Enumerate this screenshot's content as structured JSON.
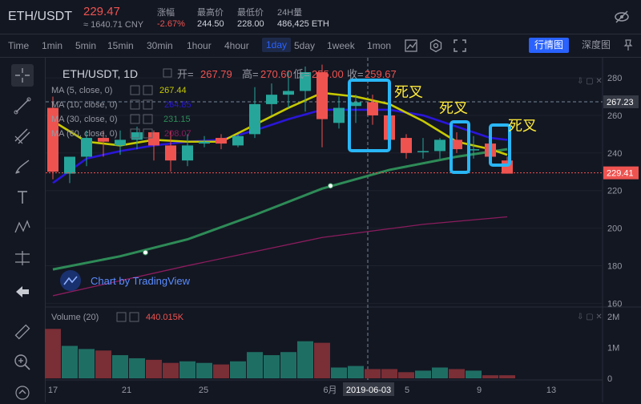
{
  "header": {
    "pair": "ETH/USDT",
    "price": "229.47",
    "price_cny": "≈ 1640.71 CNY",
    "change_label": "涨幅",
    "change_value": "-2.67%",
    "high_label": "最高价",
    "high_value": "244.50",
    "low_label": "最低价",
    "low_value": "228.00",
    "volume_label": "24H量",
    "volume_value": "486,425 ETH"
  },
  "timeframes": [
    "Time",
    "1min",
    "5min",
    "15min",
    "30min",
    "1hour",
    "4hour",
    "1day",
    "5day",
    "1week",
    "1mon"
  ],
  "active_timeframe": "1day",
  "view_buttons": {
    "primary": "行情图",
    "secondary": "深度图"
  },
  "legend": {
    "title": "ETH/USDT, 1D",
    "open_label": "开=",
    "open_value": "267.79",
    "high_label": "高=",
    "high_value": "270.60",
    "low_label": "低=",
    "low_value": "255.00",
    "close_label": "收=",
    "close_value": "259.67",
    "ma5": {
      "label": "MA (5, close, 0)",
      "value": "267.44",
      "color": "#c7c900"
    },
    "ma10": {
      "label": "MA (10, close, 0)",
      "value": "264.85",
      "color": "#2a16d9"
    },
    "ma30": {
      "label": "MA (30, close, 0)",
      "value": "231.15",
      "color": "#2e8b57"
    },
    "ma60": {
      "label": "MA (60, close, 0)",
      "value": "208.07",
      "color": "#8b1c5e"
    },
    "volume": {
      "label": "Volume (20)",
      "value": "440.015K"
    }
  },
  "watermark": "Chart by TradingView",
  "annotations": [
    "死叉",
    "死叉",
    "死叉"
  ],
  "price_tags": {
    "crosshair": "267.23",
    "last": "229.41"
  },
  "crosshair_date": "2019-06-03",
  "colors": {
    "up": "#26a69a",
    "down": "#ef5350",
    "background": "#131722",
    "annotation": "#29b6f6",
    "annotation_text": "#ffeb3b"
  },
  "chart_data": {
    "type": "candlestick",
    "x_ticks": [
      "17",
      "21",
      "25",
      "6月",
      "5",
      "9",
      "13"
    ],
    "price_axis_ticks": [
      280,
      260,
      240,
      220,
      200,
      180,
      160
    ],
    "volume_axis_ticks": [
      "2M",
      "1M",
      "0"
    ],
    "ylim": [
      158,
      286
    ],
    "candles": [
      {
        "o": 264,
        "h": 270,
        "l": 226,
        "c": 230
      },
      {
        "o": 229,
        "h": 237,
        "l": 224,
        "c": 238
      },
      {
        "o": 238,
        "h": 252,
        "l": 233,
        "c": 248
      },
      {
        "o": 248,
        "h": 252,
        "l": 238,
        "c": 246
      },
      {
        "o": 244,
        "h": 252,
        "l": 239,
        "c": 247
      },
      {
        "o": 247,
        "h": 254,
        "l": 242,
        "c": 251
      },
      {
        "o": 251,
        "h": 252,
        "l": 236,
        "c": 244
      },
      {
        "o": 244,
        "h": 252,
        "l": 230,
        "c": 236
      },
      {
        "o": 236,
        "h": 250,
        "l": 233,
        "c": 244
      },
      {
        "o": 245,
        "h": 249,
        "l": 243,
        "c": 246
      },
      {
        "o": 248,
        "h": 250,
        "l": 242,
        "c": 245
      },
      {
        "o": 244,
        "h": 250,
        "l": 243,
        "c": 249
      },
      {
        "o": 250,
        "h": 275,
        "l": 248,
        "c": 266
      },
      {
        "o": 266,
        "h": 277,
        "l": 260,
        "c": 271
      },
      {
        "o": 271,
        "h": 284,
        "l": 264,
        "c": 273
      },
      {
        "o": 273,
        "h": 286,
        "l": 262,
        "c": 283
      },
      {
        "o": 283,
        "h": 287,
        "l": 243,
        "c": 258
      },
      {
        "o": 256,
        "h": 270,
        "l": 253,
        "c": 264
      },
      {
        "o": 265,
        "h": 271,
        "l": 256,
        "c": 267
      },
      {
        "o": 267,
        "h": 271,
        "l": 255,
        "c": 260
      },
      {
        "o": 260,
        "h": 263,
        "l": 244,
        "c": 247
      },
      {
        "o": 248,
        "h": 250,
        "l": 237,
        "c": 240
      },
      {
        "o": 241,
        "h": 248,
        "l": 237,
        "c": 241
      },
      {
        "o": 241,
        "h": 248,
        "l": 237,
        "c": 247
      },
      {
        "o": 247,
        "h": 251,
        "l": 240,
        "c": 242
      },
      {
        "o": 242,
        "h": 249,
        "l": 237,
        "c": 242
      },
      {
        "o": 245,
        "h": 248,
        "l": 234,
        "c": 238
      },
      {
        "o": 236,
        "h": 238,
        "l": 229,
        "c": 229
      }
    ],
    "volume_millions": [
      1.6,
      1.05,
      0.95,
      0.9,
      0.75,
      0.65,
      0.6,
      0.5,
      0.55,
      0.5,
      0.45,
      0.55,
      0.85,
      0.75,
      0.85,
      1.2,
      1.15,
      0.35,
      0.4,
      0.3,
      0.3,
      0.2,
      0.25,
      0.35,
      0.3,
      0.25,
      0.1,
      0.1
    ],
    "ma5": [
      [
        0,
        257
      ],
      [
        2,
        246
      ],
      [
        4,
        244
      ],
      [
        6,
        247
      ],
      [
        8,
        246
      ],
      [
        10,
        246
      ],
      [
        12,
        255
      ],
      [
        14,
        264
      ],
      [
        16,
        272
      ],
      [
        18,
        270
      ],
      [
        20,
        266
      ],
      [
        22,
        257
      ],
      [
        24,
        246
      ],
      [
        26,
        242
      ],
      [
        27,
        239
      ]
    ],
    "ma10": [
      [
        0,
        224
      ],
      [
        2,
        237
      ],
      [
        4,
        241
      ],
      [
        6,
        244
      ],
      [
        8,
        246
      ],
      [
        10,
        247
      ],
      [
        12,
        252
      ],
      [
        14,
        258
      ],
      [
        16,
        263
      ],
      [
        18,
        263
      ],
      [
        20,
        263
      ],
      [
        22,
        260
      ],
      [
        24,
        254
      ],
      [
        26,
        248
      ],
      [
        27,
        247
      ]
    ],
    "ma30": [
      [
        0,
        178
      ],
      [
        4,
        185
      ],
      [
        8,
        194
      ],
      [
        12,
        207
      ],
      [
        16,
        221
      ],
      [
        20,
        231
      ],
      [
        24,
        238
      ],
      [
        27,
        242
      ]
    ],
    "ma60": [
      [
        0,
        164
      ],
      [
        8,
        180
      ],
      [
        16,
        195
      ],
      [
        22,
        202
      ],
      [
        27,
        206
      ]
    ]
  }
}
